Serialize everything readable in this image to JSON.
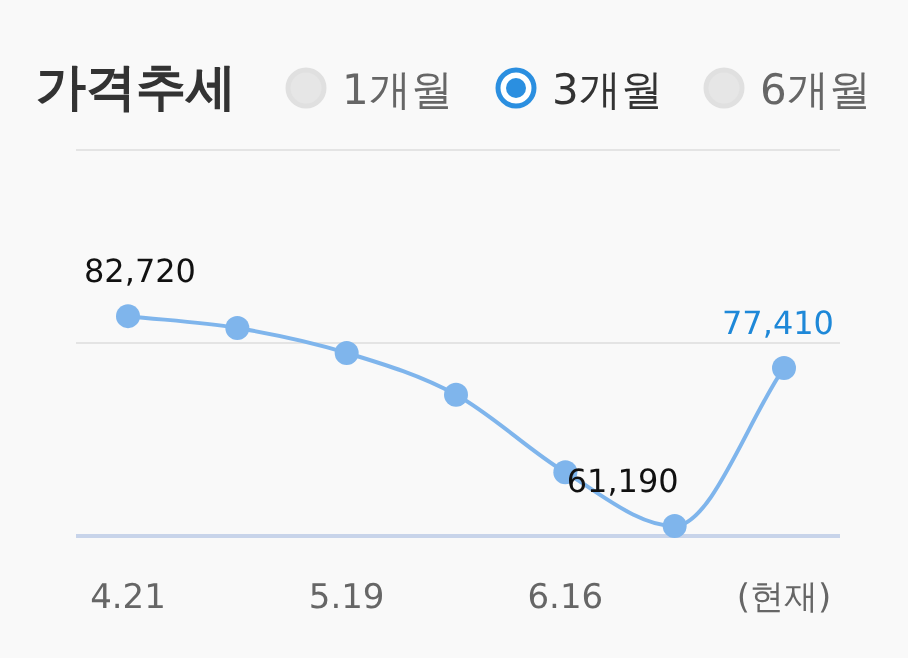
{
  "chart_data": {
    "type": "line",
    "title": "가격추세",
    "annotations": [
      "1개월",
      "3개월",
      "6개월"
    ],
    "categories": [
      "4.21",
      null,
      "5.19",
      null,
      "6.16",
      null,
      "(현재)"
    ],
    "series": [
      {
        "color": "#7fb5ec",
        "values": [
          82720,
          81500,
          78950,
          74660,
          66700,
          61190,
          77410
        ],
        "value_labels": [
          "82,720",
          null,
          null,
          null,
          null,
          "61,190",
          "77,410"
        ]
      }
    ],
    "ref_lines": [
      {
        "axis": "y",
        "value": 79960,
        "color": "#e4e4e4"
      }
    ],
    "relative": false,
    "marker": "circle"
  }
}
